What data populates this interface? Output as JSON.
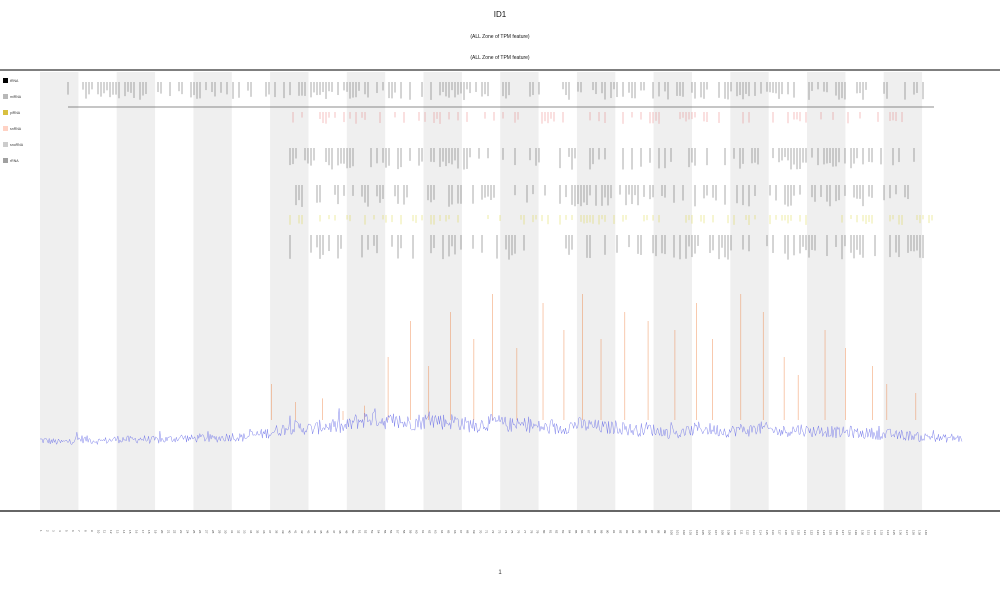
{
  "chart_data": {
    "type": "line",
    "title_lines": [
      "ID1",
      "(ALL Zone of TPM feature)",
      "(ALL Zone of TPM feature)"
    ],
    "xlabel": "1",
    "ylabel": "",
    "legend_labels": [
      "tRNA",
      "miRNA",
      "piRNA",
      "snRNA",
      "snoRNA",
      "rRNA"
    ],
    "legend_colors": [
      "#000000",
      "#b8b8b8",
      "#d8c040",
      "#ffd2c4",
      "#cccccc",
      "#a0a0a0"
    ],
    "legend_placement": "top-left",
    "bands": 12,
    "band_color": "#efefef",
    "grid": false,
    "colors": {
      "signal": "#6a6ee8",
      "rug_black": "#111111",
      "rug_red": "#e05050",
      "rug_yellow": "#d0c800",
      "rug_orange": "#ee8040",
      "axis": "#333333"
    },
    "series": [
      {
        "name": "",
        "values": [
          0.05,
          0.04,
          0.03,
          0.04,
          0.06,
          0.05,
          0.04,
          0.05,
          0.06,
          0.05,
          0.06,
          0.05,
          0.05,
          0.06,
          0.07,
          0.06,
          0.07,
          0.06,
          0.07,
          0.08,
          0.07,
          0.09,
          0.1,
          0.12,
          0.14,
          0.16,
          0.15,
          0.14,
          0.17,
          0.16,
          0.15,
          0.2,
          0.22,
          0.24,
          0.21,
          0.2,
          0.19,
          0.2,
          0.21,
          0.22,
          0.2,
          0.21,
          0.18,
          0.17,
          0.19,
          0.2,
          0.18,
          0.17,
          0.18,
          0.16,
          0.15,
          0.14,
          0.16,
          0.18,
          0.17,
          0.16,
          0.15,
          0.16,
          0.14,
          0.13,
          0.15,
          0.12,
          0.11,
          0.1,
          0.12,
          0.15,
          0.14,
          0.13,
          0.12,
          0.14,
          0.13,
          0.15,
          0.14,
          0.12,
          0.13,
          0.14,
          0.12,
          0.13,
          0.12,
          0.11,
          0.12,
          0.1,
          0.11,
          0.09,
          0.1,
          0.08,
          0.09,
          0.07,
          0.08,
          0.06,
          0.07,
          0.06
        ]
      }
    ],
    "peak_values": [
      0.2,
      0.1,
      0.12,
      0.05,
      0.08,
      0.35,
      0.55,
      0.3,
      0.6,
      0.45,
      0.7,
      0.4,
      0.65,
      0.5,
      0.7,
      0.45,
      0.6,
      0.55,
      0.5,
      0.65,
      0.45,
      0.7,
      0.6,
      0.35,
      0.25,
      0.5,
      0.4,
      0.3,
      0.2,
      0.15
    ],
    "ylim": [
      0,
      1
    ]
  }
}
